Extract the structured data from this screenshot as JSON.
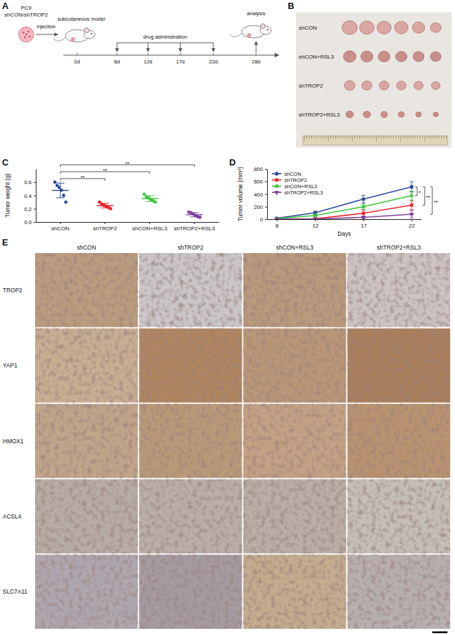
{
  "panel_labels": [
    "A",
    "B",
    "C",
    "D",
    "E"
  ],
  "schematic": {
    "cell_label": [
      "PC9",
      "shCON/shTROP2"
    ],
    "injection": "injection",
    "model": "subcutaneous model",
    "treatment": "drug administration",
    "end": "analysis",
    "days": [
      "0d",
      "8d",
      "12d",
      "17d",
      "22d",
      "28d"
    ]
  },
  "photo": {
    "rows": [
      "shCON",
      "shCON+RSL3",
      "shTROP2",
      "shTROP2+RSL3"
    ]
  },
  "chart_data": [
    {
      "type": "scatter",
      "ylabel": "Tumor weight (g)",
      "categories": [
        "shCON",
        "shTROP2",
        "shCON+RSL3",
        "shTROP2+RSL3"
      ],
      "colors": [
        "#2a4a9c",
        "#e8262d",
        "#3cc43c",
        "#7f3f98"
      ],
      "values": [
        [
          0.6,
          0.55,
          0.52,
          0.48,
          0.4,
          0.3
        ],
        [
          0.3,
          0.27,
          0.25,
          0.24,
          0.22,
          0.2
        ],
        [
          0.42,
          0.38,
          0.36,
          0.34,
          0.32,
          0.3
        ],
        [
          0.15,
          0.14,
          0.12,
          0.1,
          0.08,
          0.07
        ]
      ],
      "means": [
        0.475,
        0.247,
        0.353,
        0.11
      ],
      "errors": [
        0.11,
        0.035,
        0.043,
        0.032
      ],
      "ylim": [
        0,
        0.8
      ],
      "yticks": [
        {
          "value": 0,
          "label": "0.0"
        },
        0.2,
        0.4,
        0.6
      ],
      "comparisons": [
        {
          "groups": [
            "shCON",
            "shTROP2"
          ],
          "label": "**"
        },
        {
          "groups": [
            "shCON",
            "shCON+RSL3"
          ],
          "label": "**"
        },
        {
          "groups": [
            "shCON",
            "shTROP2+RSL3"
          ],
          "label": "**"
        }
      ]
    },
    {
      "type": "line",
      "xlabel": "Days",
      "ylabel": "Tumor volume (mm³)",
      "x": [
        8,
        12,
        17,
        22
      ],
      "xlim": [
        7,
        23
      ],
      "xticks": [
        8,
        12,
        17,
        22
      ],
      "ylim": [
        0,
        800
      ],
      "yticks": [
        0,
        200,
        400,
        600,
        800
      ],
      "legend": "upper left",
      "series": [
        {
          "name": "shCON",
          "color": "#2a4a9c",
          "marker": "circle",
          "values": [
            15,
            105,
            320,
            515
          ],
          "errors": [
            5,
            25,
            60,
            80
          ]
        },
        {
          "name": "shTROP2",
          "color": "#e8262d",
          "marker": "square",
          "values": [
            5,
            8,
            95,
            225
          ],
          "errors": [
            3,
            5,
            50,
            70
          ]
        },
        {
          "name": "shCON+RSL3",
          "color": "#3cc43c",
          "marker": "triangle",
          "values": [
            10,
            60,
            200,
            375
          ],
          "errors": [
            3,
            15,
            40,
            70
          ]
        },
        {
          "name": "shTROP2+RSL3",
          "color": "#7f3f98",
          "marker": "triangle-down",
          "values": [
            3,
            5,
            30,
            80
          ],
          "errors": [
            2,
            3,
            20,
            60
          ]
        }
      ],
      "comparisons": [
        {
          "groups": [
            "shCON",
            "shCON+RSL3"
          ],
          "label": "*"
        },
        {
          "groups": [
            "shCON",
            "shTROP2"
          ],
          "label": "**"
        },
        {
          "groups": [
            "shCON",
            "shTROP2+RSL3"
          ],
          "label": "**"
        }
      ]
    }
  ],
  "ihc": {
    "columns": [
      "shCON",
      "shTROP2",
      "shCON+RSL3",
      "shTROP2+RSL3"
    ],
    "rows": [
      "TROP2",
      "YAP1",
      "HMOX1",
      "ACSL4",
      "SLC7A11"
    ],
    "colors": [
      [
        "#bb9c7e",
        "#cbc6c8",
        "#b99a7c",
        "#ccc4c3"
      ],
      [
        "#c9ae93",
        "#b0855f",
        "#b99677",
        "#aa7f5b"
      ],
      [
        "#c1a58b",
        "#ba9979",
        "#c4a184",
        "#b99270"
      ],
      [
        "#b8ada5",
        "#baafa7",
        "#baaea6",
        "#c7beb9"
      ],
      [
        "#afa7af",
        "#a69ba1",
        "#c4ac8f",
        "#b8afaf"
      ]
    ]
  }
}
